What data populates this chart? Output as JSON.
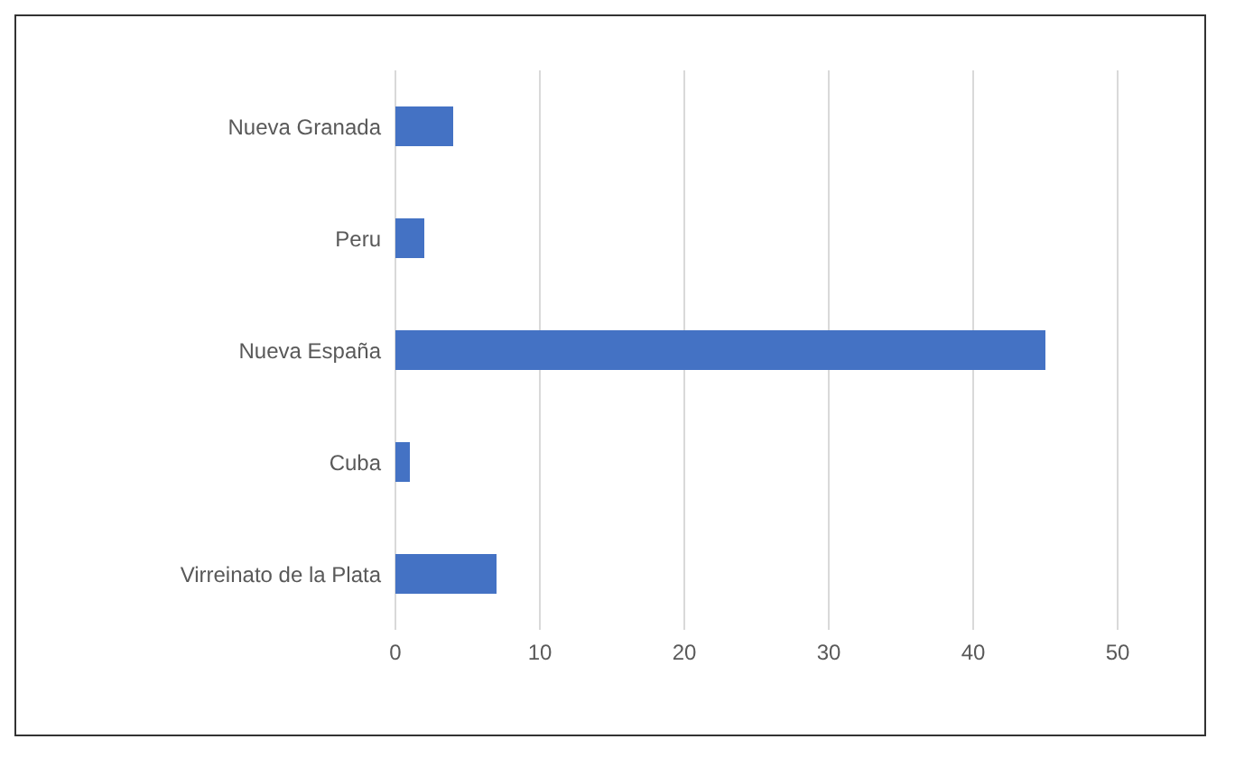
{
  "chart_data": {
    "type": "bar",
    "orientation": "horizontal",
    "categories": [
      "Nueva Granada",
      "Peru",
      "Nueva España",
      "Cuba",
      "Virreinato de la Plata"
    ],
    "values": [
      4,
      2,
      45,
      1,
      7
    ],
    "color": "#4472c4",
    "xlim": [
      0,
      50
    ],
    "xticks": [
      0,
      10,
      20,
      30,
      40,
      50
    ],
    "grid": "x"
  }
}
